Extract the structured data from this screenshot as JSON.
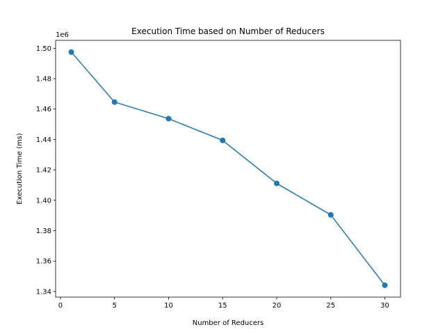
{
  "chart_data": {
    "type": "line",
    "title": "Execution Time based on Number of Reducers",
    "xlabel": "Number of Reducers",
    "ylabel": "Execution Time (ms)",
    "y_offset_label": "1e6",
    "xlim": [
      -0.45,
      31.45
    ],
    "ylim": [
      1.3363,
      1.5052
    ],
    "x_ticks": [
      0,
      5,
      10,
      15,
      20,
      25,
      30
    ],
    "y_ticks": [
      1.34,
      1.36,
      1.38,
      1.4,
      1.42,
      1.44,
      1.46,
      1.48,
      1.5
    ],
    "y_tick_labels": [
      "1.34",
      "1.36",
      "1.38",
      "1.40",
      "1.42",
      "1.44",
      "1.46",
      "1.48",
      "1.50"
    ],
    "grid": false,
    "series": [
      {
        "color": "#1f77b4",
        "marker": "circle",
        "x": [
          1,
          5,
          10,
          15,
          20,
          25,
          30
        ],
        "y": [
          1.4975,
          1.4646,
          1.4537,
          1.4394,
          1.4111,
          1.3904,
          1.3441
        ]
      }
    ]
  }
}
